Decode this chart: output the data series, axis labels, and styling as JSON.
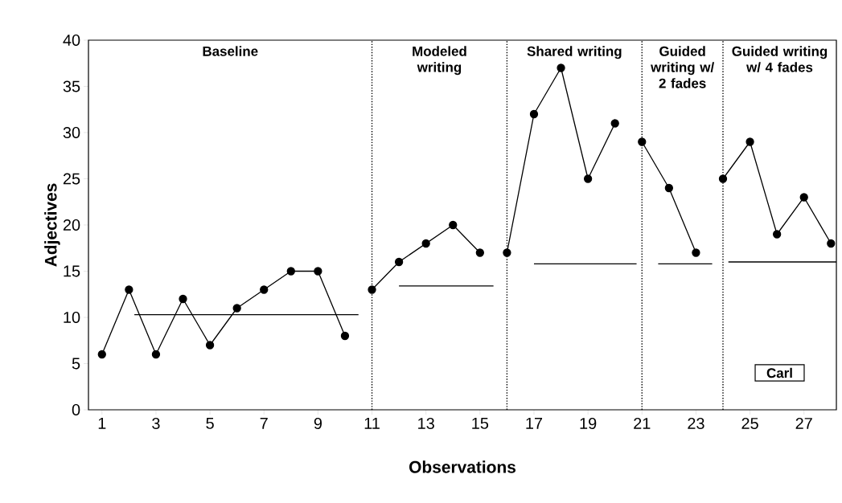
{
  "chart_data": {
    "type": "line",
    "xlabel": "Observations",
    "ylabel": "Adjectives",
    "xlim": [
      0.5,
      28.2
    ],
    "xticks": [
      1,
      3,
      5,
      7,
      9,
      11,
      13,
      15,
      17,
      19,
      21,
      23,
      25,
      27
    ],
    "ylim": [
      0,
      40
    ],
    "yticks": [
      0,
      5,
      10,
      15,
      20,
      25,
      30,
      35,
      40
    ],
    "marker": "circle",
    "line_style": "solid",
    "series": [
      {
        "color": "#000000",
        "x": [
          1,
          2,
          3,
          4,
          5,
          6,
          7,
          8,
          9,
          10
        ],
        "values": [
          6,
          13,
          6,
          12,
          7,
          11,
          13,
          15,
          15,
          8
        ]
      },
      {
        "color": "#000000",
        "x": [
          11,
          12,
          13,
          14,
          15
        ],
        "values": [
          13,
          16,
          18,
          20,
          17
        ]
      },
      {
        "color": "#000000",
        "x": [
          16,
          17,
          18,
          19,
          20
        ],
        "values": [
          17,
          32,
          37,
          25,
          31
        ]
      },
      {
        "color": "#000000",
        "x": [
          21,
          22,
          23
        ],
        "values": [
          29,
          24,
          17
        ]
      },
      {
        "color": "#000000",
        "x": [
          24,
          25,
          26,
          27,
          28
        ],
        "values": [
          25,
          29,
          19,
          23,
          18
        ]
      },
      {
        "type": "line",
        "marker": "none",
        "color": "#000000",
        "x": [
          2.2,
          10.5
        ],
        "values": [
          10.3,
          10.3
        ]
      },
      {
        "type": "line",
        "marker": "none",
        "color": "#000000",
        "x": [
          12,
          15.5
        ],
        "values": [
          13.4,
          13.4
        ]
      },
      {
        "type": "line",
        "marker": "none",
        "color": "#000000",
        "x": [
          17,
          20.8
        ],
        "values": [
          15.8,
          15.8
        ]
      },
      {
        "type": "line",
        "marker": "none",
        "color": "#000000",
        "x": [
          21.6,
          23.6
        ],
        "values": [
          15.8,
          15.8
        ]
      },
      {
        "type": "line",
        "marker": "none",
        "color": "#000000",
        "x": [
          24.2,
          28.2
        ],
        "values": [
          16,
          16
        ]
      }
    ],
    "ref_lines": [
      {
        "axis": "x",
        "value": 11,
        "line_style": "dotted",
        "color": "#000000"
      },
      {
        "axis": "x",
        "value": 16,
        "line_style": "dotted",
        "color": "#000000"
      },
      {
        "axis": "x",
        "value": 21,
        "line_style": "dotted",
        "color": "#000000"
      },
      {
        "axis": "x",
        "value": 24,
        "line_style": "dotted",
        "color": "#000000"
      }
    ],
    "annotations": [
      "Baseline",
      "Modeled writing",
      "Shared writing",
      "Guided writing w/ 2 fades",
      "Guided writing w/ 4 fades",
      "Carl"
    ]
  }
}
